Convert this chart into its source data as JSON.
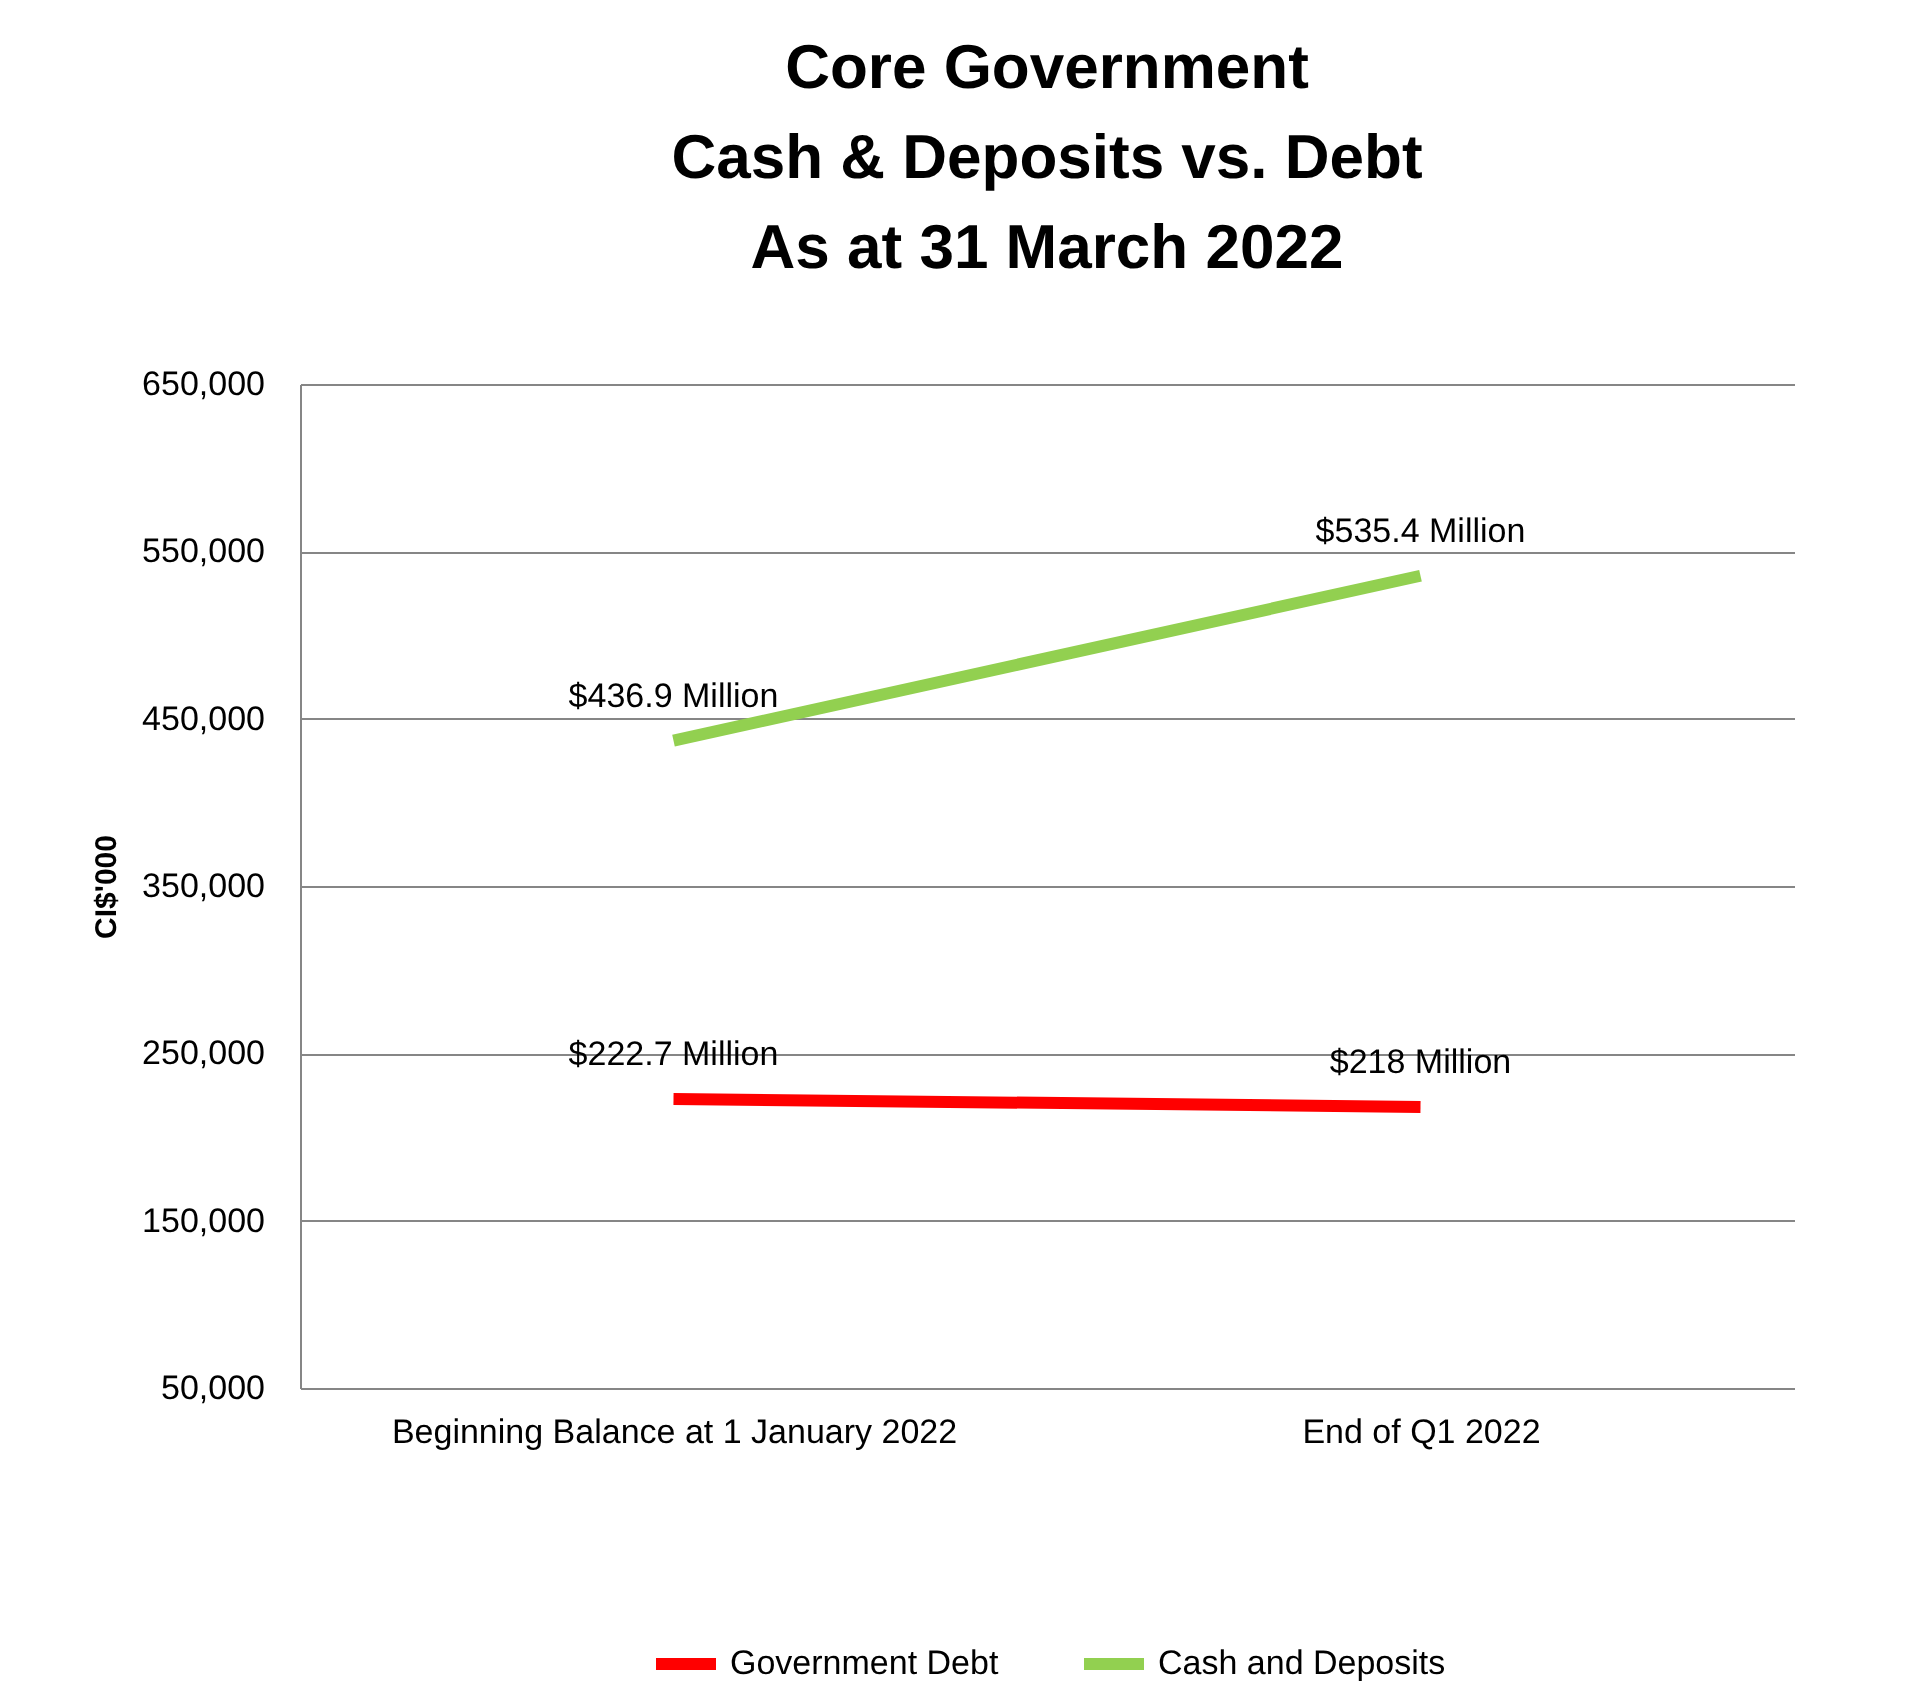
{
  "chart_data": {
    "type": "line",
    "title": "Core Government\nCash & Deposits vs. Debt\nAs at 31 March 2022",
    "ylabel": "CI$'000",
    "categories": [
      "Beginning Balance at 1 January 2022",
      "End of Q1 2022"
    ],
    "series": [
      {
        "name": "Government Debt",
        "color": "#ff0000",
        "values": [
          222700,
          218000
        ]
      },
      {
        "name": "Cash and Deposits",
        "color": "#92d050",
        "values": [
          436900,
          535400
        ]
      }
    ],
    "annotations": [
      {
        "text": "$222.7 Million",
        "x": "Beginning Balance at 1 January 2022",
        "y": 222700
      },
      {
        "text": "$218 Million",
        "x": "End of Q1 2022",
        "y": 218000
      },
      {
        "text": "$436.9 Million",
        "x": "Beginning Balance at 1 January 2022",
        "y": 436900
      },
      {
        "text": "$535.4 Million",
        "x": "End of Q1 2022",
        "y": 535400
      }
    ],
    "ylim": [
      50000,
      650000
    ],
    "yticks": [
      {
        "value": 50000,
        "label": "50,000"
      },
      {
        "value": 150000,
        "label": "150,000"
      },
      {
        "value": 250000,
        "label": "250,000"
      },
      {
        "value": 350000,
        "label": "350,000"
      },
      {
        "value": 450000,
        "label": "450,000"
      },
      {
        "value": 550000,
        "label": "550,000"
      },
      {
        "value": 650000,
        "label": "650,000"
      }
    ],
    "grid": "y",
    "legend": "bottom",
    "line_style": "solid"
  }
}
